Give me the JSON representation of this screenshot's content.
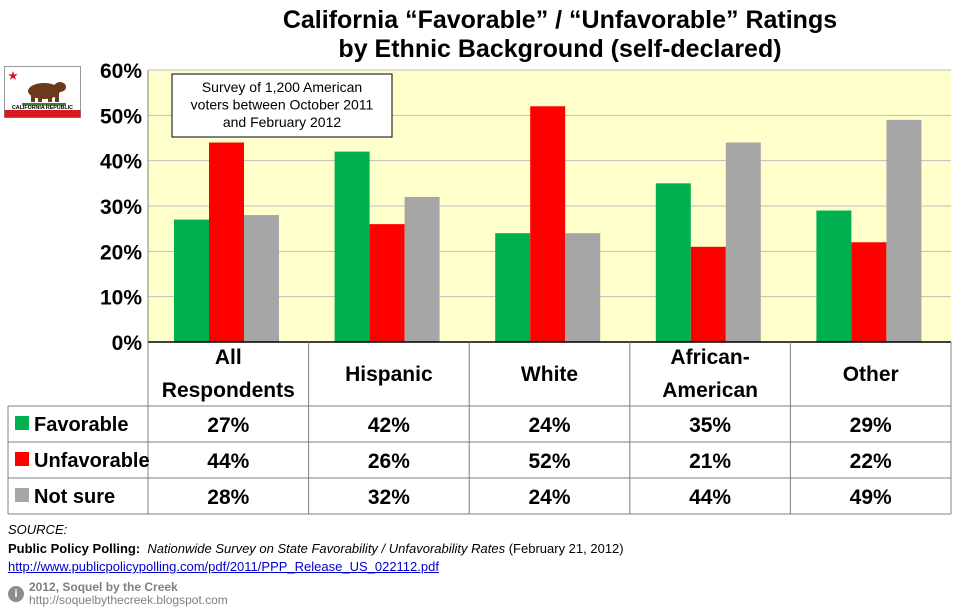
{
  "chart_data": {
    "type": "bar",
    "title_line1": "California “Favorable” / “Unfavorable” Ratings",
    "title_line2": "by Ethnic Background (self-declared)",
    "categories": [
      {
        "line1": "All",
        "line2": "Respondents"
      },
      {
        "line1": "Hispanic",
        "line2": ""
      },
      {
        "line1": "White",
        "line2": ""
      },
      {
        "line1": "African-",
        "line2": "American"
      },
      {
        "line1": "Other",
        "line2": ""
      }
    ],
    "series": [
      {
        "name": "Favorable",
        "color": "#00b050",
        "values": [
          27,
          42,
          24,
          35,
          29
        ]
      },
      {
        "name": "Unfavorable",
        "color": "#ff0000",
        "values": [
          44,
          26,
          52,
          21,
          22
        ]
      },
      {
        "name": "Not sure",
        "color": "#a6a6a6",
        "values": [
          28,
          32,
          24,
          44,
          49
        ]
      }
    ],
    "ylim": [
      0,
      60
    ],
    "yticks": [
      0,
      10,
      20,
      30,
      40,
      50,
      60
    ],
    "ytick_suffix": "%",
    "plot_background": "#ffffcc",
    "annotation": [
      "Survey of 1,200 American",
      "voters between October 2011",
      "and February 2012"
    ]
  },
  "flag": {
    "label": "CALIFORNIA REPUBLIC"
  },
  "source": {
    "label": "SOURCE:",
    "publisher": "Public Policy Polling:",
    "report": "Nationwide Survey on State Favorability / Unfavorability Rates",
    "date": "(February 21, 2012)",
    "url": "http://www.publicpolicypolling.com/pdf/2011/PPP_Release_US_022112.pdf"
  },
  "credit": {
    "line1": "2012, Soquel by the Creek",
    "line2": "http://soquelbythecreek.blogspot.com"
  }
}
